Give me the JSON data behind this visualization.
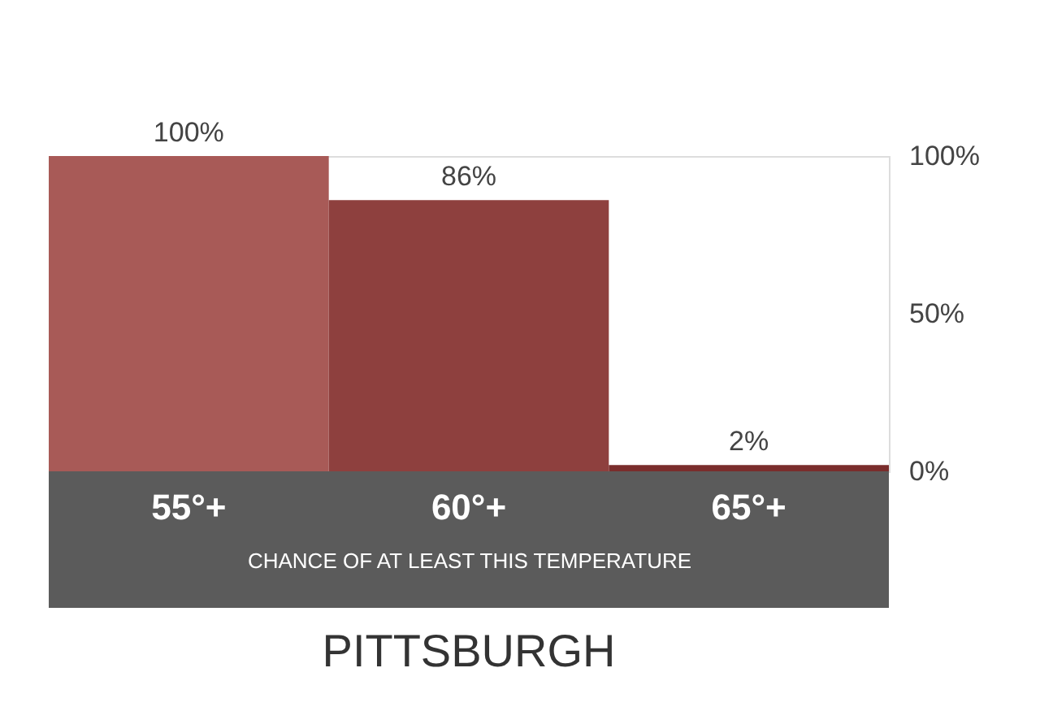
{
  "chart_data": {
    "type": "bar",
    "title": "PITTSBURGH",
    "xlabel": "CHANCE OF AT LEAST THIS TEMPERATURE",
    "categories": [
      "55°+",
      "60°+",
      "65°+"
    ],
    "values": [
      100,
      86,
      2
    ],
    "colors": [
      "#a85a57",
      "#8e403e",
      "#7a2d2c"
    ],
    "value_labels": [
      "100%",
      "86%",
      "2%"
    ],
    "ylim": [
      0,
      100
    ],
    "yticks": [
      {
        "value": 0,
        "label": "0%"
      },
      {
        "value": 50,
        "label": "50%"
      },
      {
        "value": 100,
        "label": "100%"
      }
    ],
    "grid": false
  }
}
